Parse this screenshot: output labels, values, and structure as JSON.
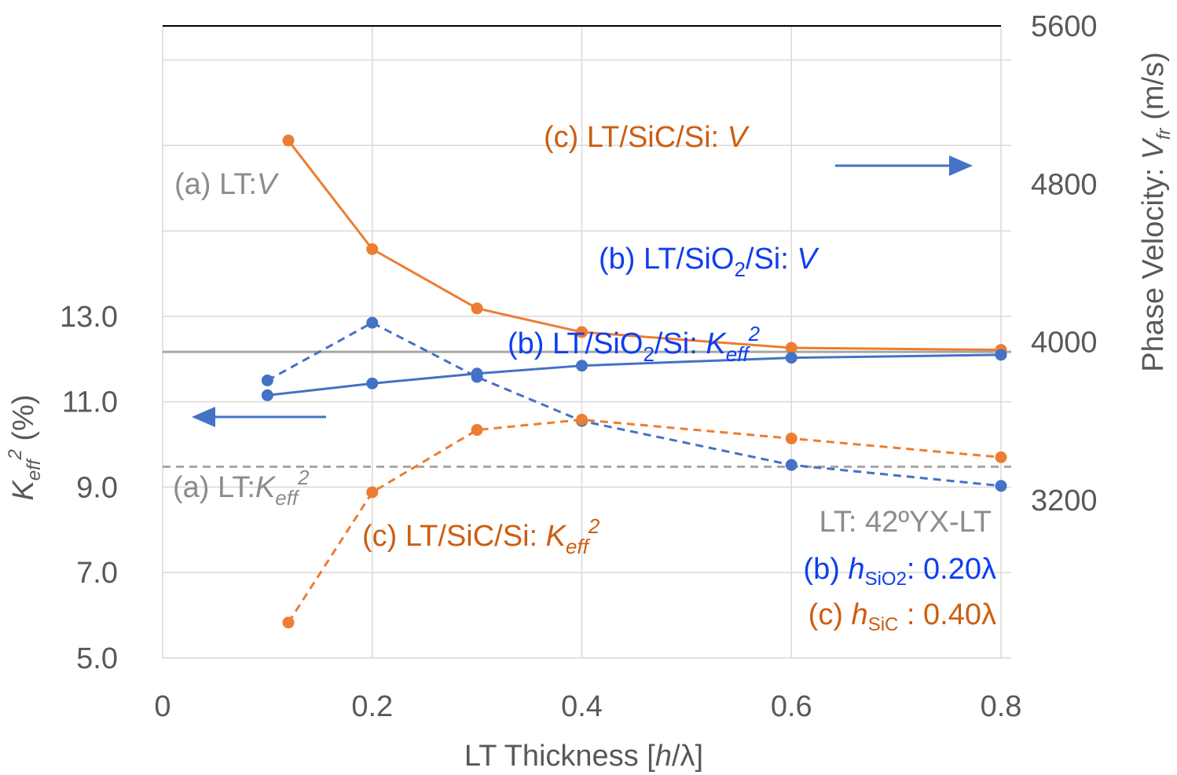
{
  "chart_data": {
    "type": "line",
    "x_axis": {
      "label_prefix": "LT Thickness [",
      "label_var": "h",
      "label_suffix": "/λ]",
      "ticks": [
        "0",
        "0.2",
        "0.4",
        "0.6",
        "0.8"
      ],
      "range": [
        0,
        0.8
      ]
    },
    "y_left": {
      "label_var": "K",
      "label_sub": "eff",
      "label_sup": "2",
      "label_suffix": " (%)",
      "ticks": [
        "5.0",
        "7.0",
        "9.0",
        "11.0",
        "13.0"
      ],
      "range": [
        5.0,
        19.8
      ]
    },
    "y_right": {
      "label_prefix": "Phase Velocity: ",
      "label_var": "V",
      "label_sub": "fr",
      "label_suffix": " (m/s)",
      "ticks": [
        "3200",
        "4000",
        "4800",
        "5600"
      ],
      "range": [
        2400,
        5600
      ]
    },
    "grid": true,
    "colors": {
      "orange": "#ed7d31",
      "blue": "#4472c4",
      "gray": "#a6a6a6",
      "text_blue": "#0f3ef0",
      "text_orange": "#cc5e11",
      "text_gray": "#8c8c8c"
    },
    "series": [
      {
        "axis": "right",
        "style": "solid",
        "color": "#ed7d31",
        "x": [
          0.12,
          0.2,
          0.3,
          0.4,
          0.6,
          0.8
        ],
        "y": [
          5020,
          4470,
          4170,
          4050,
          3970,
          3960
        ]
      },
      {
        "axis": "right",
        "style": "solid",
        "color": "#4472c4",
        "x": [
          0.1,
          0.2,
          0.3,
          0.4,
          0.6,
          0.8
        ],
        "y": [
          3730,
          3790,
          3840,
          3880,
          3920,
          3935
        ]
      },
      {
        "axis": "left",
        "style": "dashed",
        "color": "#4472c4",
        "x": [
          0.1,
          0.2,
          0.3,
          0.4,
          0.6,
          0.8
        ],
        "y": [
          11.5,
          12.85,
          11.58,
          10.55,
          9.52,
          9.03
        ]
      },
      {
        "axis": "left",
        "style": "dashed",
        "color": "#ed7d31",
        "x": [
          0.12,
          0.2,
          0.3,
          0.4,
          0.6,
          0.8
        ],
        "y": [
          5.83,
          8.88,
          10.34,
          10.58,
          10.14,
          9.7
        ]
      }
    ],
    "reference_lines": [
      {
        "axis": "right",
        "style": "solid",
        "color": "#a6a6a6",
        "value": 3950
      },
      {
        "axis": "left",
        "style": "dashed",
        "color": "#a6a6a6",
        "value": 9.48
      }
    ],
    "annotations": {
      "c_v": {
        "main": "(c) LT/SiC/Si: ",
        "var": "V"
      },
      "a_v": {
        "main": "(a) LT:",
        "var": "V"
      },
      "b_v": {
        "main": "(b) LT/SiO",
        "sub": "2",
        "rest": "/Si: ",
        "var": "V"
      },
      "b_k": {
        "main": "(b) LT/SiO",
        "sub": "2",
        "rest": "/Si: ",
        "var": "K",
        "var_sub": "eff",
        "var_sup": "2"
      },
      "a_k": {
        "main": "(a) LT:",
        "var": "K",
        "var_sub": "eff",
        "var_sup": "2"
      },
      "c_k": {
        "main": "(c) LT/SiC/Si: ",
        "var": "K",
        "var_sub": "eff",
        "var_sup": "2"
      },
      "lt_note": "LT: 42ºYX-LT",
      "b_h": {
        "prefix": "(b) ",
        "var": "h",
        "sub": "SiO2",
        "value": ": 0.20λ"
      },
      "c_h": {
        "prefix": "(c)  ",
        "var": "h",
        "sub": "SiC",
        "value": " : 0.40λ"
      }
    }
  }
}
